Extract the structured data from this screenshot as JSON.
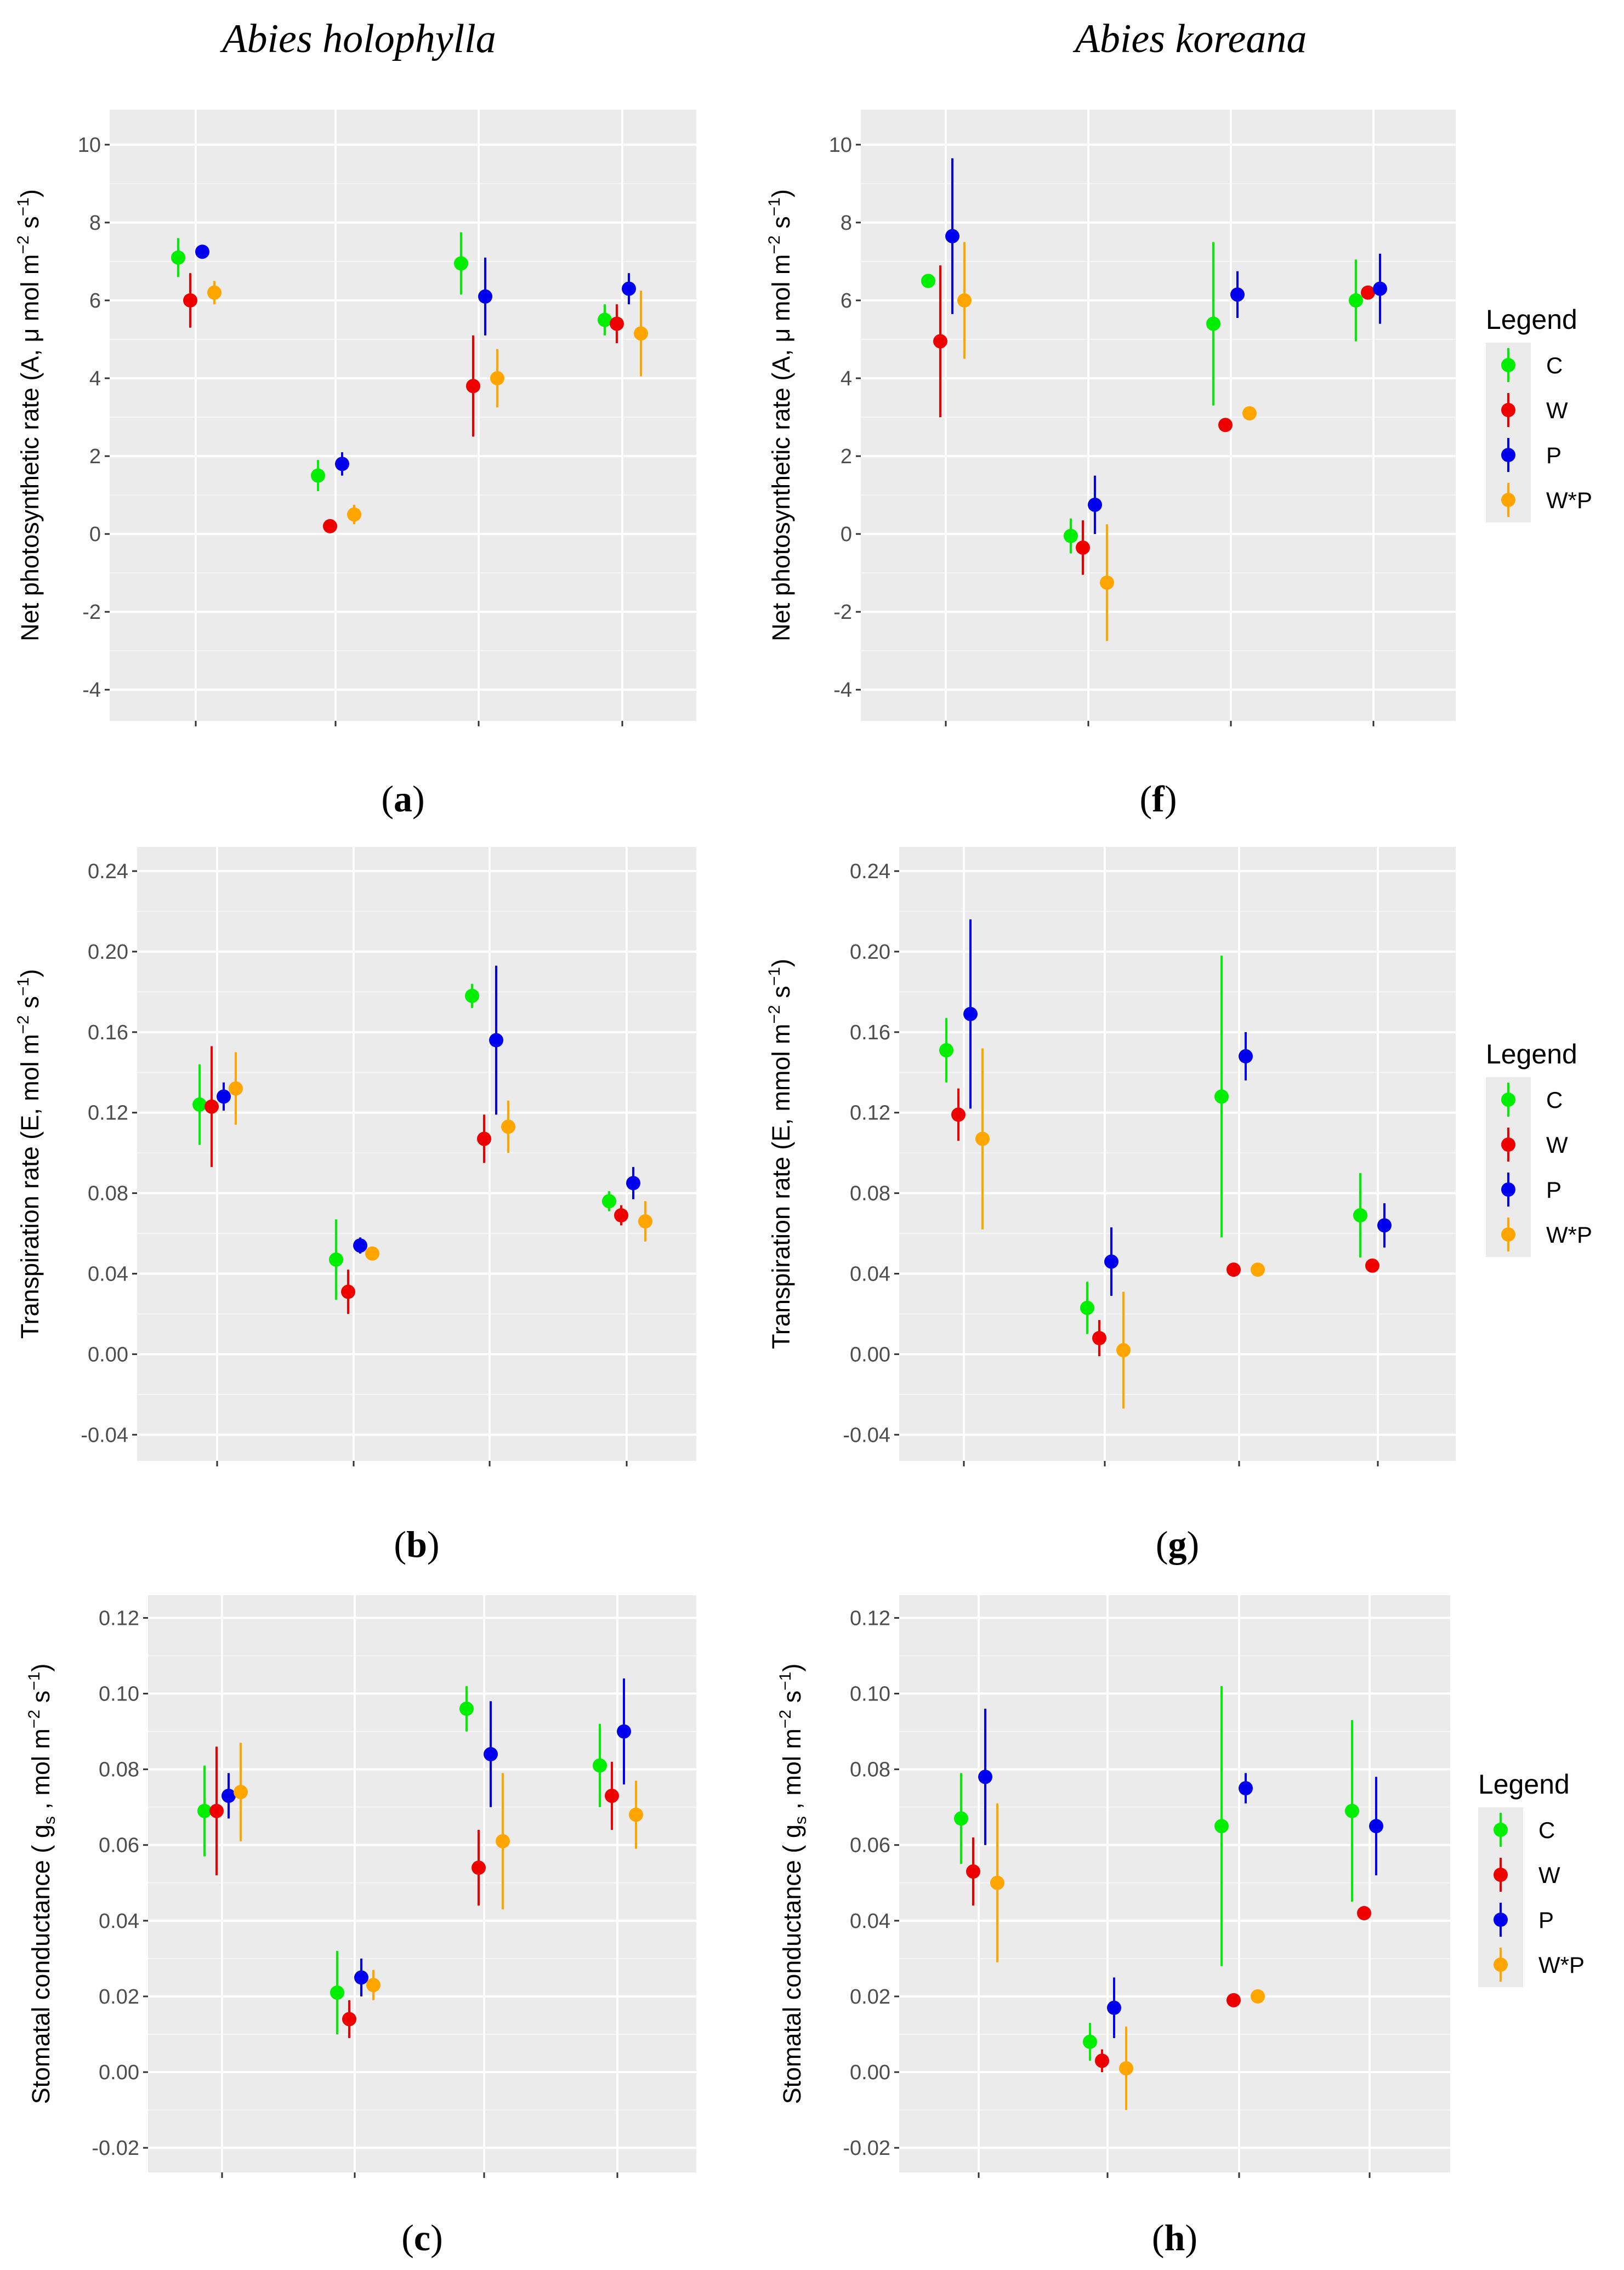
{
  "header": {
    "left_species": "Abies holophylla",
    "right_species": "Abies koreana"
  },
  "legend": {
    "title": "Legend",
    "entries": [
      {
        "label": "C",
        "color": "#00ee00"
      },
      {
        "label": "W",
        "color": "#ee0000"
      },
      {
        "label": "P",
        "color": "#0000ee"
      },
      {
        "label": "W*P",
        "color": "#ffa500"
      }
    ]
  },
  "chart_data": [
    {
      "id": "a",
      "label_open": "(",
      "label_letter": "a",
      "label_close": ")",
      "type": "scatter",
      "ylabel_main": "Net photosynthetic rate (A,  μ mol m",
      "ylabel_sup1": "−2",
      "ylabel_mid": " s",
      "ylabel_sup2": "−1",
      "ylabel_end": ")",
      "ylim": [
        -4.8,
        10.9
      ],
      "yticks": [
        -4,
        -2,
        0,
        2,
        4,
        6,
        8,
        10
      ],
      "ytick_labels": [
        "-4",
        "-2",
        "0",
        "2",
        "4",
        "6",
        "8",
        "10"
      ],
      "groups": 4,
      "series": [
        {
          "name": "C",
          "color": "#00ee00",
          "values": [
            7.1,
            1.5,
            6.95,
            5.5
          ],
          "err": [
            0.5,
            0.4,
            0.8,
            0.4
          ]
        },
        {
          "name": "W",
          "color": "#ee0000",
          "values": [
            6.0,
            0.2,
            3.8,
            5.4
          ],
          "err": [
            0.7,
            0.05,
            1.3,
            0.5
          ]
        },
        {
          "name": "P",
          "color": "#0000ee",
          "values": [
            7.25,
            1.8,
            6.1,
            6.3
          ],
          "err": [
            0.05,
            0.3,
            1.0,
            0.4
          ]
        },
        {
          "name": "W*P",
          "color": "#ffa500",
          "values": [
            6.2,
            0.5,
            4.0,
            5.15
          ],
          "err": [
            0.3,
            0.25,
            0.75,
            1.1
          ]
        }
      ]
    },
    {
      "id": "f",
      "label_open": "(",
      "label_letter": "f",
      "label_close": ")",
      "type": "scatter",
      "ylabel_main": "Net photosynthetic rate (A,  μ mol m",
      "ylabel_sup1": "−2",
      "ylabel_mid": " s",
      "ylabel_sup2": "−1",
      "ylabel_end": ")",
      "ylim": [
        -4.8,
        10.9
      ],
      "yticks": [
        -4,
        -2,
        0,
        2,
        4,
        6,
        8,
        10
      ],
      "ytick_labels": [
        "-4",
        "-2",
        "0",
        "2",
        "4",
        "6",
        "8",
        "10"
      ],
      "groups": 4,
      "series": [
        {
          "name": "C",
          "color": "#00ee00",
          "values": [
            6.5,
            -0.05,
            5.4,
            6.0
          ],
          "err": [
            0.1,
            0.45,
            2.1,
            1.05
          ]
        },
        {
          "name": "W",
          "color": "#ee0000",
          "values": [
            4.95,
            -0.35,
            2.8,
            6.2
          ],
          "err": [
            1.95,
            0.7,
            0.1,
            0.1
          ]
        },
        {
          "name": "P",
          "color": "#0000ee",
          "values": [
            7.65,
            0.75,
            6.15,
            6.3
          ],
          "err": [
            2.0,
            0.75,
            0.6,
            0.9
          ]
        },
        {
          "name": "W*P",
          "color": "#ffa500",
          "values": [
            6.0,
            -1.25,
            3.1,
            null
          ],
          "err": [
            1.5,
            1.5,
            0.1,
            null
          ]
        }
      ]
    },
    {
      "id": "b",
      "label_open": "(",
      "label_letter": "b",
      "label_close": ")",
      "type": "scatter",
      "ylabel_main": "Transpiration rate (E, mol m",
      "ylabel_sup1": "−2",
      "ylabel_mid": " s",
      "ylabel_sup2": "−1",
      "ylabel_end": ")",
      "ylim": [
        -0.053,
        0.252
      ],
      "yticks": [
        -0.04,
        0.0,
        0.04,
        0.08,
        0.12,
        0.16,
        0.2,
        0.24
      ],
      "ytick_labels": [
        "-0.04",
        "0.00",
        "0.04",
        "0.08",
        "0.12",
        "0.16",
        "0.20",
        "0.24"
      ],
      "groups": 4,
      "series": [
        {
          "name": "C",
          "color": "#00ee00",
          "values": [
            0.124,
            0.047,
            0.178,
            0.076
          ],
          "err": [
            0.02,
            0.02,
            0.006,
            0.005
          ]
        },
        {
          "name": "W",
          "color": "#ee0000",
          "values": [
            0.123,
            0.031,
            0.107,
            0.069
          ],
          "err": [
            0.03,
            0.011,
            0.012,
            0.005
          ]
        },
        {
          "name": "P",
          "color": "#0000ee",
          "values": [
            0.128,
            0.054,
            0.156,
            0.085
          ],
          "err": [
            0.007,
            0.004,
            0.037,
            0.008
          ]
        },
        {
          "name": "W*P",
          "color": "#ffa500",
          "values": [
            0.132,
            0.05,
            0.113,
            0.066
          ],
          "err": [
            0.018,
            0.003,
            0.013,
            0.01
          ]
        }
      ]
    },
    {
      "id": "g",
      "label_open": "(",
      "label_letter": "g",
      "label_close": ")",
      "type": "scatter",
      "ylabel_main": "Transpiration rate (E, mmol m",
      "ylabel_sup1": "−2",
      "ylabel_mid": " s",
      "ylabel_sup2": "−1",
      "ylabel_end": ")",
      "ylim": [
        -0.053,
        0.252
      ],
      "yticks": [
        -0.04,
        0.0,
        0.04,
        0.08,
        0.12,
        0.16,
        0.2,
        0.24
      ],
      "ytick_labels": [
        "-0.04",
        "0.00",
        "0.04",
        "0.08",
        "0.12",
        "0.16",
        "0.20",
        "0.24"
      ],
      "groups": 4,
      "series": [
        {
          "name": "C",
          "color": "#00ee00",
          "values": [
            0.151,
            0.023,
            0.128,
            0.069
          ],
          "err": [
            0.016,
            0.013,
            0.07,
            0.021
          ]
        },
        {
          "name": "W",
          "color": "#ee0000",
          "values": [
            0.119,
            0.008,
            0.042,
            0.044
          ],
          "err": [
            0.013,
            0.009,
            0.002,
            0.002
          ]
        },
        {
          "name": "P",
          "color": "#0000ee",
          "values": [
            0.169,
            0.046,
            0.148,
            0.064
          ],
          "err": [
            0.047,
            0.017,
            0.012,
            0.011
          ]
        },
        {
          "name": "W*P",
          "color": "#ffa500",
          "values": [
            0.107,
            0.002,
            0.042,
            null
          ],
          "err": [
            0.045,
            0.029,
            0.002,
            null
          ]
        }
      ]
    },
    {
      "id": "c",
      "label_open": "(",
      "label_letter": "c",
      "label_close": ")",
      "type": "scatter",
      "ylabel_main": "Stomatal conductance ( g",
      "ylabel_sub": "s",
      "ylabel_pre": " , mol m",
      "ylabel_sup1": "−2",
      "ylabel_mid": " s",
      "ylabel_sup2": "−1",
      "ylabel_end": ")",
      "ylim": [
        -0.0265,
        0.126
      ],
      "yticks": [
        -0.02,
        0.0,
        0.02,
        0.04,
        0.06,
        0.08,
        0.1,
        0.12
      ],
      "ytick_labels": [
        "-0.02",
        "0.00",
        "0.02",
        "0.04",
        "0.06",
        "0.08",
        "0.10",
        "0.12"
      ],
      "groups": 4,
      "series": [
        {
          "name": "C",
          "color": "#00ee00",
          "values": [
            0.069,
            0.021,
            0.096,
            0.081
          ],
          "err": [
            0.012,
            0.011,
            0.006,
            0.011
          ]
        },
        {
          "name": "W",
          "color": "#ee0000",
          "values": [
            0.069,
            0.014,
            0.054,
            0.073
          ],
          "err": [
            0.017,
            0.005,
            0.01,
            0.009
          ]
        },
        {
          "name": "P",
          "color": "#0000ee",
          "values": [
            0.073,
            0.025,
            0.084,
            0.09
          ],
          "err": [
            0.006,
            0.005,
            0.014,
            0.014
          ]
        },
        {
          "name": "W*P",
          "color": "#ffa500",
          "values": [
            0.074,
            0.023,
            0.061,
            0.068
          ],
          "err": [
            0.013,
            0.004,
            0.018,
            0.009
          ]
        }
      ]
    },
    {
      "id": "h",
      "label_open": "(",
      "label_letter": "h",
      "label_close": ")",
      "type": "scatter",
      "ylabel_main": "Stomatal conductance ( g",
      "ylabel_sub": "s",
      "ylabel_pre": " , mol m",
      "ylabel_sup1": "−2",
      "ylabel_mid": " s",
      "ylabel_sup2": "−1",
      "ylabel_end": ")",
      "ylim": [
        -0.0265,
        0.126
      ],
      "yticks": [
        -0.02,
        0.0,
        0.02,
        0.04,
        0.06,
        0.08,
        0.1,
        0.12
      ],
      "ytick_labels": [
        "-0.02",
        "0.00",
        "0.02",
        "0.04",
        "0.06",
        "0.08",
        "0.10",
        "0.12"
      ],
      "groups": 4,
      "series": [
        {
          "name": "C",
          "color": "#00ee00",
          "values": [
            0.067,
            0.008,
            0.065,
            0.069
          ],
          "err": [
            0.012,
            0.005,
            0.037,
            0.024
          ]
        },
        {
          "name": "W",
          "color": "#ee0000",
          "values": [
            0.053,
            0.003,
            0.019,
            0.042
          ],
          "err": [
            0.009,
            0.003,
            0.001,
            0.001
          ]
        },
        {
          "name": "P",
          "color": "#0000ee",
          "values": [
            0.078,
            0.017,
            0.075,
            0.065
          ],
          "err": [
            0.018,
            0.008,
            0.004,
            0.013
          ]
        },
        {
          "name": "W*P",
          "color": "#ffa500",
          "values": [
            0.05,
            0.001,
            0.02,
            null
          ],
          "err": [
            0.021,
            0.011,
            0.001,
            null
          ]
        }
      ]
    }
  ]
}
